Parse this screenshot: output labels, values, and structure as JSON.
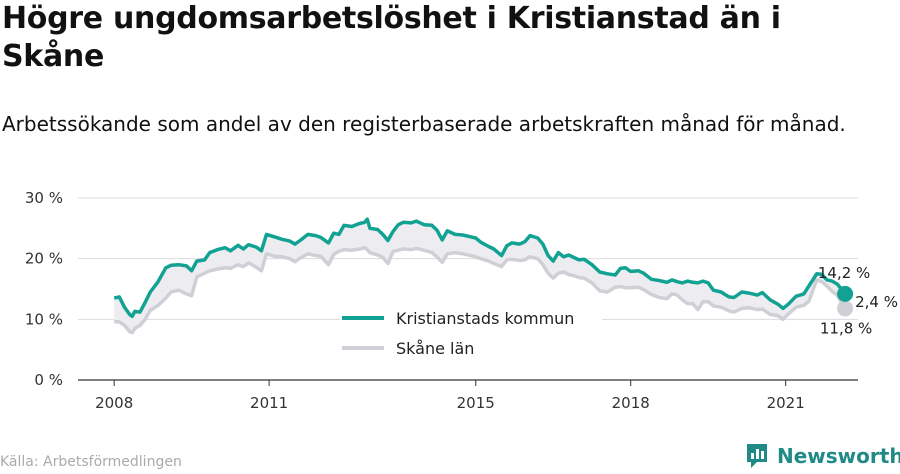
{
  "header": {
    "title": "Högre ungdomsarbetslöshet i Kristianstad än i Skåne",
    "subtitle": "Arbetssökande som andel av den registerbaserade arbetskraften månad för månad."
  },
  "footer": {
    "source": "Källa: Arbetsförmedlingen",
    "brand": "Newsworthy"
  },
  "colors": {
    "kommun": "#12a293",
    "lan": "#cfcfd6",
    "fill": "#ededf1",
    "grid": "#dcdcdc"
  },
  "chart_data": {
    "type": "line",
    "title": "Högre ungdomsarbetslöshet i Kristianstad än i Skåne",
    "subtitle": "Arbetssökande som andel av den registerbaserade arbetskraften månad för månad.",
    "x_tick_labels": [
      "2008",
      "2011",
      "2015",
      "2018",
      "2021"
    ],
    "x_tick_values": [
      2008,
      2011,
      2015,
      2018,
      2021
    ],
    "y_tick_labels": [
      "0 %",
      "10 %",
      "20 %",
      "30 %"
    ],
    "y_tick_values": [
      0,
      10,
      20,
      30
    ],
    "xlim": [
      2007.3,
      2022.4
    ],
    "ylim": [
      0,
      30
    ],
    "legend_position": "center",
    "series": [
      {
        "name": "Kristianstads kommun",
        "color": "#12a293",
        "points": [
          [
            2008.0,
            13.5
          ],
          [
            2008.1,
            13.7
          ],
          [
            2008.2,
            12.0
          ],
          [
            2008.3,
            10.8
          ],
          [
            2008.35,
            10.5
          ],
          [
            2008.4,
            11.3
          ],
          [
            2008.5,
            11.2
          ],
          [
            2008.6,
            12.8
          ],
          [
            2008.7,
            14.5
          ],
          [
            2008.85,
            16.2
          ],
          [
            2009.0,
            18.5
          ],
          [
            2009.1,
            18.9
          ],
          [
            2009.25,
            19.0
          ],
          [
            2009.4,
            18.8
          ],
          [
            2009.5,
            18.0
          ],
          [
            2009.6,
            19.6
          ],
          [
            2009.75,
            19.8
          ],
          [
            2009.85,
            21.0
          ],
          [
            2010.0,
            21.5
          ],
          [
            2010.15,
            21.8
          ],
          [
            2010.25,
            21.3
          ],
          [
            2010.4,
            22.2
          ],
          [
            2010.5,
            21.6
          ],
          [
            2010.6,
            22.3
          ],
          [
            2010.75,
            21.9
          ],
          [
            2010.85,
            21.3
          ],
          [
            2010.95,
            24.0
          ],
          [
            2011.1,
            23.6
          ],
          [
            2011.25,
            23.2
          ],
          [
            2011.4,
            22.9
          ],
          [
            2011.5,
            22.4
          ],
          [
            2011.6,
            23.0
          ],
          [
            2011.75,
            24.0
          ],
          [
            2011.9,
            23.8
          ],
          [
            2012.0,
            23.5
          ],
          [
            2012.15,
            22.6
          ],
          [
            2012.25,
            24.2
          ],
          [
            2012.35,
            24.0
          ],
          [
            2012.45,
            25.5
          ],
          [
            2012.6,
            25.3
          ],
          [
            2012.75,
            25.8
          ],
          [
            2012.85,
            26.0
          ],
          [
            2012.9,
            26.5
          ],
          [
            2012.95,
            25.0
          ],
          [
            2013.1,
            24.8
          ],
          [
            2013.2,
            24.0
          ],
          [
            2013.3,
            23.0
          ],
          [
            2013.4,
            24.5
          ],
          [
            2013.5,
            25.6
          ],
          [
            2013.6,
            26.0
          ],
          [
            2013.75,
            25.9
          ],
          [
            2013.85,
            26.2
          ],
          [
            2014.0,
            25.6
          ],
          [
            2014.15,
            25.5
          ],
          [
            2014.25,
            24.7
          ],
          [
            2014.35,
            23.1
          ],
          [
            2014.45,
            24.6
          ],
          [
            2014.6,
            24.0
          ],
          [
            2014.75,
            23.9
          ],
          [
            2014.9,
            23.6
          ],
          [
            2015.0,
            23.4
          ],
          [
            2015.1,
            22.7
          ],
          [
            2015.25,
            22.0
          ],
          [
            2015.35,
            21.6
          ],
          [
            2015.5,
            20.5
          ],
          [
            2015.6,
            22.1
          ],
          [
            2015.7,
            22.6
          ],
          [
            2015.85,
            22.4
          ],
          [
            2015.95,
            22.8
          ],
          [
            2016.05,
            23.8
          ],
          [
            2016.2,
            23.4
          ],
          [
            2016.3,
            22.4
          ],
          [
            2016.4,
            20.5
          ],
          [
            2016.5,
            19.6
          ],
          [
            2016.6,
            21.0
          ],
          [
            2016.7,
            20.3
          ],
          [
            2016.8,
            20.6
          ],
          [
            2016.9,
            20.2
          ],
          [
            2017.0,
            19.8
          ],
          [
            2017.1,
            19.9
          ],
          [
            2017.25,
            19.0
          ],
          [
            2017.4,
            17.8
          ],
          [
            2017.55,
            17.5
          ],
          [
            2017.7,
            17.3
          ],
          [
            2017.8,
            18.4
          ],
          [
            2017.9,
            18.5
          ],
          [
            2018.0,
            17.9
          ],
          [
            2018.15,
            18.0
          ],
          [
            2018.25,
            17.6
          ],
          [
            2018.4,
            16.6
          ],
          [
            2018.55,
            16.4
          ],
          [
            2018.7,
            16.1
          ],
          [
            2018.8,
            16.5
          ],
          [
            2018.9,
            16.2
          ],
          [
            2019.0,
            16.0
          ],
          [
            2019.1,
            16.3
          ],
          [
            2019.2,
            16.1
          ],
          [
            2019.3,
            16.0
          ],
          [
            2019.4,
            16.3
          ],
          [
            2019.5,
            16.0
          ],
          [
            2019.6,
            14.8
          ],
          [
            2019.75,
            14.5
          ],
          [
            2019.9,
            13.7
          ],
          [
            2020.0,
            13.6
          ],
          [
            2020.15,
            14.5
          ],
          [
            2020.3,
            14.3
          ],
          [
            2020.45,
            14.0
          ],
          [
            2020.55,
            14.4
          ],
          [
            2020.7,
            13.2
          ],
          [
            2020.85,
            12.5
          ],
          [
            2020.95,
            11.8
          ],
          [
            2021.05,
            12.5
          ],
          [
            2021.2,
            13.8
          ],
          [
            2021.35,
            14.2
          ],
          [
            2021.45,
            15.5
          ],
          [
            2021.6,
            17.5
          ],
          [
            2021.7,
            17.4
          ],
          [
            2021.8,
            16.5
          ],
          [
            2021.9,
            16.3
          ],
          [
            2022.0,
            15.8
          ],
          [
            2022.1,
            14.8
          ],
          [
            2022.15,
            14.2
          ]
        ]
      },
      {
        "name": "Skåne län",
        "color": "#cfcfd6",
        "points": [
          [
            2008.0,
            9.6
          ],
          [
            2008.1,
            9.6
          ],
          [
            2008.2,
            9.0
          ],
          [
            2008.3,
            8.0
          ],
          [
            2008.35,
            7.8
          ],
          [
            2008.4,
            8.5
          ],
          [
            2008.5,
            9.0
          ],
          [
            2008.6,
            10.0
          ],
          [
            2008.7,
            11.5
          ],
          [
            2008.85,
            12.3
          ],
          [
            2009.0,
            13.5
          ],
          [
            2009.1,
            14.5
          ],
          [
            2009.25,
            14.8
          ],
          [
            2009.4,
            14.2
          ],
          [
            2009.5,
            13.9
          ],
          [
            2009.6,
            17.0
          ],
          [
            2009.75,
            17.6
          ],
          [
            2009.85,
            18.0
          ],
          [
            2010.0,
            18.3
          ],
          [
            2010.15,
            18.5
          ],
          [
            2010.25,
            18.4
          ],
          [
            2010.4,
            19.0
          ],
          [
            2010.5,
            18.7
          ],
          [
            2010.6,
            19.3
          ],
          [
            2010.75,
            18.6
          ],
          [
            2010.85,
            18.0
          ],
          [
            2010.95,
            20.8
          ],
          [
            2011.1,
            20.4
          ],
          [
            2011.25,
            20.3
          ],
          [
            2011.4,
            20.0
          ],
          [
            2011.5,
            19.5
          ],
          [
            2011.6,
            20.1
          ],
          [
            2011.75,
            20.8
          ],
          [
            2011.9,
            20.5
          ],
          [
            2012.0,
            20.4
          ],
          [
            2012.15,
            19.0
          ],
          [
            2012.25,
            20.7
          ],
          [
            2012.35,
            21.2
          ],
          [
            2012.45,
            21.5
          ],
          [
            2012.6,
            21.4
          ],
          [
            2012.75,
            21.6
          ],
          [
            2012.85,
            21.8
          ],
          [
            2012.9,
            21.5
          ],
          [
            2012.95,
            21.0
          ],
          [
            2013.1,
            20.6
          ],
          [
            2013.2,
            20.2
          ],
          [
            2013.3,
            19.2
          ],
          [
            2013.4,
            21.2
          ],
          [
            2013.5,
            21.4
          ],
          [
            2013.6,
            21.6
          ],
          [
            2013.75,
            21.5
          ],
          [
            2013.85,
            21.7
          ],
          [
            2014.0,
            21.4
          ],
          [
            2014.15,
            21.0
          ],
          [
            2014.25,
            20.3
          ],
          [
            2014.35,
            19.4
          ],
          [
            2014.45,
            20.8
          ],
          [
            2014.6,
            21.0
          ],
          [
            2014.75,
            20.8
          ],
          [
            2014.9,
            20.5
          ],
          [
            2015.0,
            20.3
          ],
          [
            2015.1,
            20.0
          ],
          [
            2015.25,
            19.6
          ],
          [
            2015.35,
            19.2
          ],
          [
            2015.5,
            18.7
          ],
          [
            2015.6,
            19.8
          ],
          [
            2015.7,
            19.9
          ],
          [
            2015.85,
            19.7
          ],
          [
            2015.95,
            19.8
          ],
          [
            2016.05,
            20.3
          ],
          [
            2016.2,
            20.0
          ],
          [
            2016.3,
            19.0
          ],
          [
            2016.4,
            17.6
          ],
          [
            2016.5,
            16.8
          ],
          [
            2016.6,
            17.6
          ],
          [
            2016.7,
            17.8
          ],
          [
            2016.8,
            17.4
          ],
          [
            2016.9,
            17.2
          ],
          [
            2017.0,
            16.9
          ],
          [
            2017.1,
            16.8
          ],
          [
            2017.25,
            16.0
          ],
          [
            2017.4,
            14.7
          ],
          [
            2017.55,
            14.5
          ],
          [
            2017.7,
            15.3
          ],
          [
            2017.8,
            15.4
          ],
          [
            2017.9,
            15.2
          ],
          [
            2018.0,
            15.2
          ],
          [
            2018.15,
            15.3
          ],
          [
            2018.25,
            14.9
          ],
          [
            2018.4,
            14.1
          ],
          [
            2018.55,
            13.6
          ],
          [
            2018.7,
            13.4
          ],
          [
            2018.8,
            14.2
          ],
          [
            2018.9,
            14.0
          ],
          [
            2019.0,
            13.2
          ],
          [
            2019.1,
            12.6
          ],
          [
            2019.2,
            12.6
          ],
          [
            2019.3,
            11.6
          ],
          [
            2019.4,
            12.9
          ],
          [
            2019.5,
            12.9
          ],
          [
            2019.6,
            12.2
          ],
          [
            2019.75,
            12.0
          ],
          [
            2019.9,
            11.4
          ],
          [
            2020.0,
            11.2
          ],
          [
            2020.15,
            11.8
          ],
          [
            2020.3,
            11.9
          ],
          [
            2020.45,
            11.6
          ],
          [
            2020.55,
            11.7
          ],
          [
            2020.7,
            10.8
          ],
          [
            2020.85,
            10.6
          ],
          [
            2020.95,
            10.0
          ],
          [
            2021.05,
            10.9
          ],
          [
            2021.2,
            12.0
          ],
          [
            2021.35,
            12.3
          ],
          [
            2021.45,
            13.0
          ],
          [
            2021.6,
            16.5
          ],
          [
            2021.7,
            16.2
          ],
          [
            2021.8,
            15.5
          ],
          [
            2021.9,
            14.6
          ],
          [
            2022.0,
            14.0
          ],
          [
            2022.1,
            12.5
          ],
          [
            2022.15,
            11.8
          ]
        ]
      }
    ],
    "annotations": [
      {
        "series": "Kristianstads kommun",
        "label": "14,2 %"
      },
      {
        "series": "Skåne län",
        "label": "11,8 %"
      },
      {
        "label": "2,4 %"
      }
    ]
  }
}
